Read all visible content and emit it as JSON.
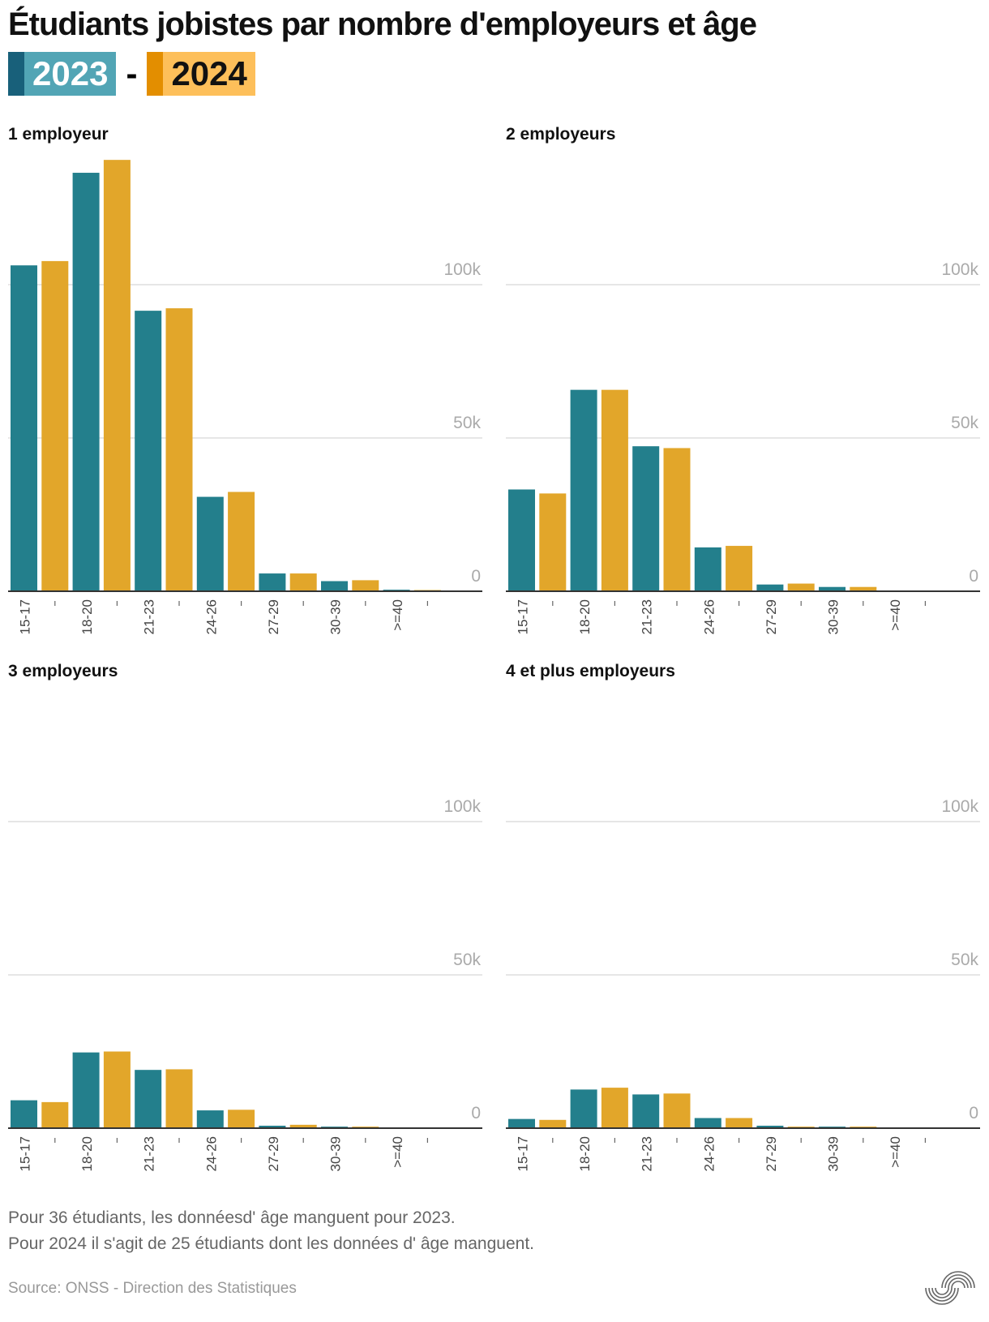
{
  "title": "Étudiants jobistes par nombre d'employeurs et âge",
  "legend": {
    "y2023": "2023",
    "separator": "-",
    "y2024": "2024"
  },
  "colors": {
    "2023": "#237f8c",
    "2023_legend": "#52a5b5",
    "2023_edge": "#18607a",
    "2024": "#e2a62a",
    "2024_legend": "#fdbf5a",
    "2024_edge": "#e38e00",
    "grid": "#dddddd",
    "axis": "#333333"
  },
  "chart_data": [
    {
      "type": "bar",
      "title": "1 employeur",
      "categories": [
        "15-17",
        "18-20",
        "21-23",
        "24-26",
        "27-29",
        "30-39",
        ">=40"
      ],
      "series": [
        {
          "name": "2023",
          "values": [
            106300,
            136500,
            91500,
            30800,
            5800,
            3300,
            500
          ]
        },
        {
          "name": "2024",
          "values": [
            107700,
            140700,
            92300,
            32400,
            5800,
            3600,
            400
          ]
        }
      ],
      "yticks": [
        "0",
        "50k",
        "100k"
      ],
      "ylim": [
        0,
        150000
      ],
      "grid": true
    },
    {
      "type": "bar",
      "title": "2 employeurs",
      "categories": [
        "15-17",
        "18-20",
        "21-23",
        "24-26",
        "27-29",
        "30-39",
        ">=40"
      ],
      "series": [
        {
          "name": "2023",
          "values": [
            33200,
            65700,
            47300,
            14300,
            2200,
            1400,
            100
          ]
        },
        {
          "name": "2024",
          "values": [
            31900,
            65700,
            46700,
            14800,
            2500,
            1400,
            100
          ]
        }
      ],
      "yticks": [
        "0",
        "50k",
        "100k"
      ],
      "ylim": [
        0,
        150000
      ],
      "grid": true
    },
    {
      "type": "bar",
      "title": "3 employeurs",
      "categories": [
        "15-17",
        "18-20",
        "21-23",
        "24-26",
        "27-29",
        "30-39",
        ">=40"
      ],
      "series": [
        {
          "name": "2023",
          "values": [
            9100,
            24700,
            19000,
            5800,
            800,
            500,
            100
          ]
        },
        {
          "name": "2024",
          "values": [
            8500,
            25000,
            19200,
            6000,
            1100,
            500,
            100
          ]
        }
      ],
      "yticks": [
        "0",
        "50k",
        "100k"
      ],
      "ylim": [
        0,
        150000
      ],
      "grid": true
    },
    {
      "type": "bar",
      "title": "4 et plus employeurs",
      "categories": [
        "15-17",
        "18-20",
        "21-23",
        "24-26",
        "27-29",
        "30-39",
        ">=40"
      ],
      "series": [
        {
          "name": "2023",
          "values": [
            3000,
            12600,
            11000,
            3300,
            800,
            500,
            100
          ]
        },
        {
          "name": "2024",
          "values": [
            2700,
            13200,
            11300,
            3300,
            500,
            500,
            100
          ]
        }
      ],
      "yticks": [
        "0",
        "50k",
        "100k"
      ],
      "ylim": [
        0,
        150000
      ],
      "grid": true
    }
  ],
  "notes": [
    "Pour 36 étudiants, les donnéesd' âge manguent pour 2023.",
    "Pour 2024 il s'agit de 25 étudiants dont les données d' âge manguent."
  ],
  "source": "Source: ONSS - Direction des Statistiques"
}
